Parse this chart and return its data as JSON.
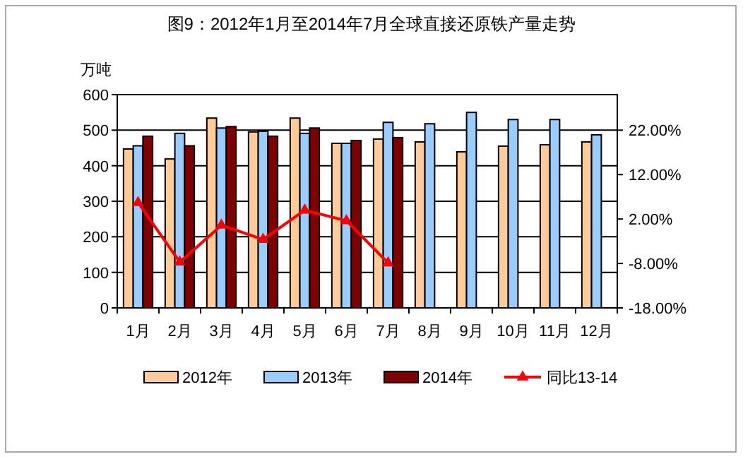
{
  "chart_data": {
    "type": "bar",
    "title": "图9：2012年1月至2014年7月全球直接还原铁产量走势",
    "ylabel": "万吨",
    "categories": [
      "1月",
      "2月",
      "3月",
      "4月",
      "5月",
      "6月",
      "7月",
      "8月",
      "9月",
      "10月",
      "11月",
      "12月"
    ],
    "series": [
      {
        "name": "2012年",
        "color": "#ffcc99",
        "values": [
          447,
          419,
          534,
          495,
          534,
          463,
          475,
          467,
          439,
          455,
          459,
          467
        ]
      },
      {
        "name": "2013年",
        "color": "#99ccff",
        "values": [
          456,
          491,
          506,
          497,
          491,
          463,
          522,
          518,
          550,
          530,
          530,
          487
        ]
      },
      {
        "name": "2014年",
        "color": "#800000",
        "values": [
          483,
          456,
          510,
          483,
          506,
          471,
          479,
          null,
          null,
          null,
          null,
          null
        ]
      },
      {
        "name": "同比13-14",
        "type": "line",
        "axis": "y2",
        "color": "#ff0000",
        "marker": "triangle",
        "values": [
          5.7,
          -7.7,
          0.6,
          -2.6,
          4.0,
          1.6,
          -7.9,
          null,
          null,
          null,
          null,
          null
        ]
      }
    ],
    "ylim": [
      0,
      600
    ],
    "yticks": [
      0,
      100,
      200,
      300,
      400,
      500,
      600
    ],
    "y2lim": [
      -18,
      30
    ],
    "y2ticks": [
      {
        "value": -18,
        "label": "-18.00%"
      },
      {
        "value": -8,
        "label": "-8.00%"
      },
      {
        "value": 2,
        "label": "2.00%"
      },
      {
        "value": 12,
        "label": "12.00%"
      },
      {
        "value": 22,
        "label": "22.00%"
      }
    ],
    "grid": "y",
    "legend": "bottom"
  }
}
